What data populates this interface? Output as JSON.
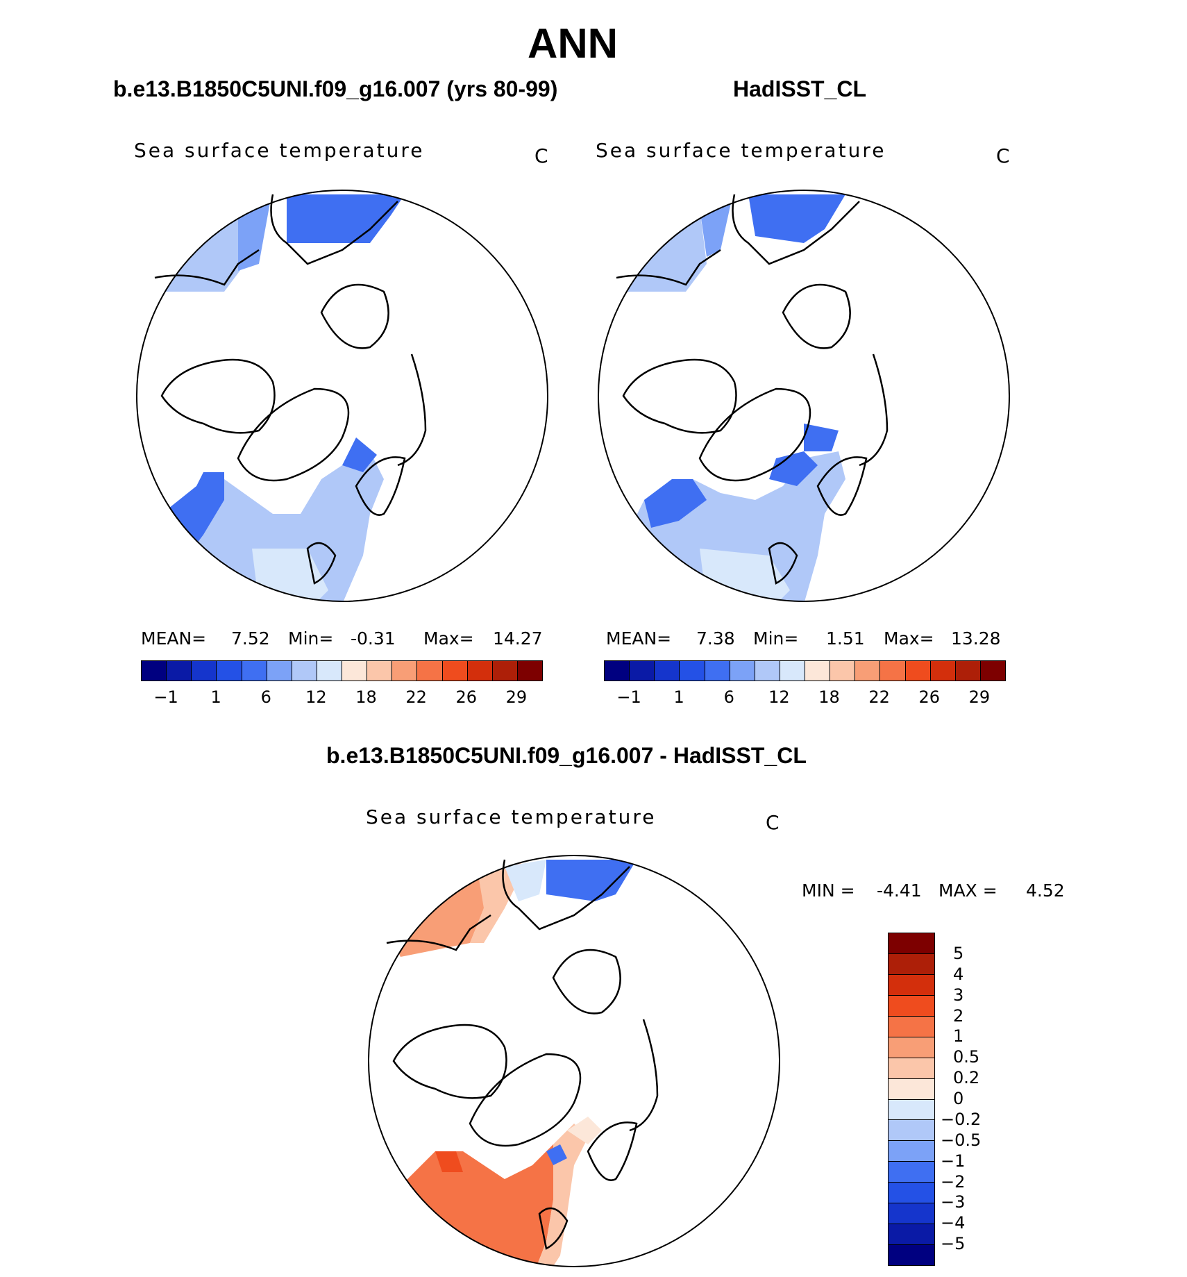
{
  "page_title": "ANN",
  "panels": [
    {
      "case": "b.e13.B1850C5UNI.f09_g16.007 (yrs 80-99)",
      "variable": "Sea surface temperature",
      "units": "C",
      "stats": {
        "mean_label": "MEAN=",
        "mean": "7.52",
        "min_label": "Min=",
        "min": "-0.31",
        "max_label": "Max=",
        "max": "14.27"
      }
    },
    {
      "case": "HadISST_CL",
      "variable": "Sea surface temperature",
      "units": "C",
      "stats": {
        "mean_label": "MEAN=",
        "mean": "7.38",
        "min_label": "Min=",
        "min": "1.51",
        "max_label": "Max=",
        "max": "13.28"
      }
    }
  ],
  "abs_colorbar": {
    "colors": [
      "#000080",
      "#0a1aa6",
      "#1535cc",
      "#2451e6",
      "#3f6ff2",
      "#7ca2f7",
      "#b0c8f8",
      "#d8e8fb",
      "#fce7d9",
      "#fbc6aa",
      "#f89e76",
      "#f57346",
      "#ef4c1e",
      "#d32f0c",
      "#ad1f08",
      "#7d0000"
    ],
    "labels": [
      "-1",
      "1",
      "6",
      "12",
      "18",
      "22",
      "26",
      "29"
    ]
  },
  "diff_panel": {
    "case": "b.e13.B1850C5UNI.f09_g16.007 - HadISST_CL",
    "variable": "Sea surface temperature",
    "units": "C",
    "stats": {
      "min_label": "MIN =",
      "min": "-4.41",
      "max_label": "MAX =",
      "max": "4.52"
    }
  },
  "diff_colorbar": {
    "colors": [
      "#7d0000",
      "#ad1f08",
      "#d32f0c",
      "#ef4c1e",
      "#f57346",
      "#f89e76",
      "#fbc6aa",
      "#fce7d9",
      "#d8e8fb",
      "#b0c8f8",
      "#7ca2f7",
      "#3f6ff2",
      "#2451e6",
      "#1535cc",
      "#0a1aa6",
      "#000080"
    ],
    "labels": [
      "5",
      "4",
      "3",
      "2",
      "1",
      "0.5",
      "0.2",
      "0",
      "-0.2",
      "-0.5",
      "-1",
      "-2",
      "-3",
      "-4",
      "-5"
    ]
  }
}
